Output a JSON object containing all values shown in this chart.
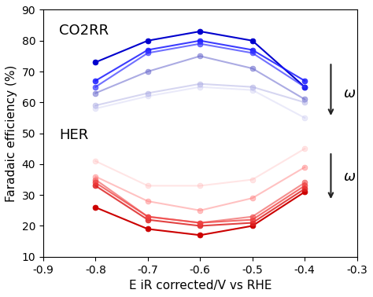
{
  "x": [
    -0.8,
    -0.7,
    -0.6,
    -0.5,
    -0.4
  ],
  "co2rr_lines": [
    {
      "y": [
        73,
        80,
        83,
        80,
        65
      ],
      "color": "#0000cd",
      "alpha": 1.0
    },
    {
      "y": [
        67,
        77,
        80,
        77,
        67
      ],
      "color": "#1a1aff",
      "alpha": 0.85
    },
    {
      "y": [
        65,
        76,
        79,
        76,
        65
      ],
      "color": "#3333ff",
      "alpha": 0.7
    },
    {
      "y": [
        63,
        70,
        75,
        71,
        61
      ],
      "color": "#6666cc",
      "alpha": 0.55
    },
    {
      "y": [
        59,
        63,
        66,
        65,
        60
      ],
      "color": "#9999dd",
      "alpha": 0.4
    },
    {
      "y": [
        58,
        62,
        65,
        64,
        55
      ],
      "color": "#bbbbee",
      "alpha": 0.3
    }
  ],
  "her_lines": [
    {
      "y": [
        26,
        19,
        17,
        20,
        31
      ],
      "color": "#cc0000",
      "alpha": 1.0
    },
    {
      "y": [
        33,
        22,
        20,
        21,
        32
      ],
      "color": "#dd2222",
      "alpha": 0.85
    },
    {
      "y": [
        34,
        23,
        21,
        22,
        33
      ],
      "color": "#ee3333",
      "alpha": 0.72
    },
    {
      "y": [
        35,
        23,
        21,
        23,
        34
      ],
      "color": "#ee4444",
      "alpha": 0.6
    },
    {
      "y": [
        36,
        28,
        25,
        29,
        39
      ],
      "color": "#ff7777",
      "alpha": 0.45
    },
    {
      "y": [
        41,
        33,
        33,
        35,
        45
      ],
      "color": "#ffaaaa",
      "alpha": 0.3
    }
  ],
  "xlim": [
    -0.9,
    -0.3
  ],
  "ylim": [
    10,
    90
  ],
  "xticks": [
    -0.9,
    -0.8,
    -0.7,
    -0.6,
    -0.5,
    -0.4,
    -0.3
  ],
  "yticks": [
    10,
    20,
    30,
    40,
    50,
    60,
    70,
    80,
    90
  ],
  "xlabel": "E iR corrected/V vs RHE",
  "ylabel": "Faradaic efficiency (%)",
  "co2rr_label": "CO2RR",
  "her_label": "HER",
  "omega_label": "ω",
  "arrow_color": "#222222",
  "background_color": "#ffffff"
}
